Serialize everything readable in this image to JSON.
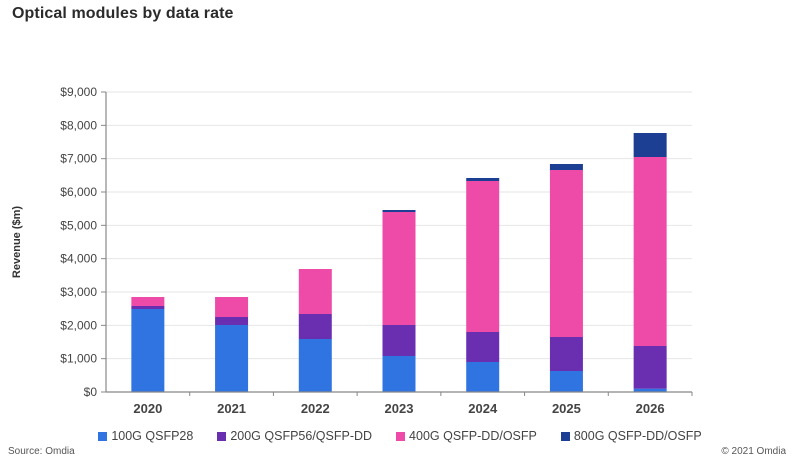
{
  "chart_data": {
    "type": "bar",
    "stacked": true,
    "title": "Optical modules by data rate",
    "xlabel": "",
    "ylabel": "Revenue ($m)",
    "ylim": [
      0,
      9000
    ],
    "yticks": [
      0,
      1000,
      2000,
      3000,
      4000,
      5000,
      6000,
      7000,
      8000,
      9000
    ],
    "ytick_labels": [
      "$0",
      "$1,000",
      "$2,000",
      "$3,000",
      "$4,000",
      "$5,000",
      "$6,000",
      "$7,000",
      "$8,000",
      "$9,000"
    ],
    "grid": true,
    "legend_position": "bottom",
    "categories": [
      "2020",
      "2021",
      "2022",
      "2023",
      "2024",
      "2025",
      "2026"
    ],
    "series": [
      {
        "name": "100G QSFP28",
        "color": "#2f74e0",
        "values": [
          2490,
          2010,
          1590,
          1080,
          900,
          630,
          100
        ]
      },
      {
        "name": "200G QSFP56/QSFP-DD",
        "color": "#6a2fb0",
        "values": [
          90,
          240,
          750,
          930,
          900,
          1020,
          1280
        ]
      },
      {
        "name": "400G QSFP-DD/OSFP",
        "color": "#ee4aa8",
        "values": [
          270,
          600,
          1350,
          3390,
          4530,
          5010,
          5670
        ]
      },
      {
        "name": "800G QSFP-DD/OSFP",
        "color": "#1c3f94",
        "values": [
          0,
          0,
          0,
          60,
          90,
          180,
          720
        ]
      }
    ]
  },
  "footer": {
    "source": "Source: Omdia",
    "copyright": "© 2021 Omdia"
  }
}
